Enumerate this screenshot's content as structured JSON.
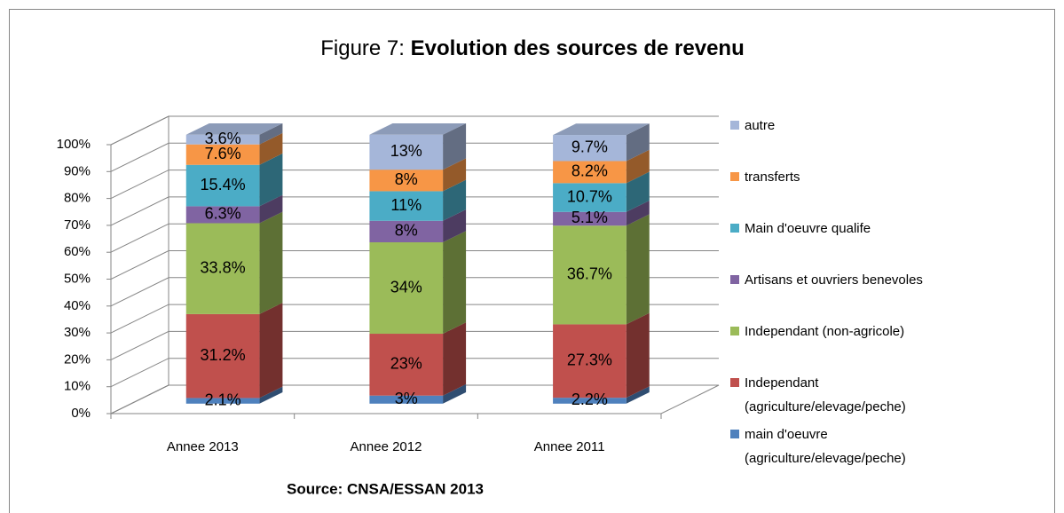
{
  "chart_data": {
    "type": "bar3d_stacked",
    "title": {
      "prefix": "Figure 7:",
      "main": "Evolution des sources de revenu"
    },
    "source": "Source: CNSA/ESSAN 2013",
    "categories": [
      "Annee 2013",
      "Annee 2012",
      "Annee 2011"
    ],
    "series": [
      {
        "name": "main d'oeuvre (agriculture/elevage/peche)",
        "color": "#4f81bd",
        "values": [
          2.1,
          3,
          2.2
        ],
        "value_labels": [
          "2.1%",
          "3%",
          "2.2%"
        ]
      },
      {
        "name": "Independant (agriculture/elevage/peche)",
        "color": "#c0504d",
        "values": [
          31.2,
          23,
          27.3
        ],
        "value_labels": [
          "31.2%",
          "23%",
          "27.3%"
        ]
      },
      {
        "name": "Independant (non-agricole)",
        "color": "#9bbb59",
        "values": [
          33.8,
          34,
          36.7
        ],
        "value_labels": [
          "33.8%",
          "34%",
          "36.7%"
        ]
      },
      {
        "name": "Artisans et ouvriers benevoles",
        "color": "#8064a2",
        "values": [
          6.3,
          8,
          5.1
        ],
        "value_labels": [
          "6.3%",
          "8%",
          "5.1%"
        ]
      },
      {
        "name": "Main d'oeuvre qualife",
        "color": "#4bacc6",
        "values": [
          15.4,
          11,
          10.7
        ],
        "value_labels": [
          "15.4%",
          "11%",
          "10.7%"
        ]
      },
      {
        "name": "transferts",
        "color": "#f79646",
        "values": [
          7.6,
          8,
          8.2
        ],
        "value_labels": [
          "7.6%",
          "8%",
          "8.2%"
        ]
      },
      {
        "name": "autre",
        "color": "#a5b6d9",
        "values": [
          3.6,
          13,
          9.7
        ],
        "value_labels": [
          "3.6%",
          "13%",
          "9.7%"
        ]
      }
    ],
    "ylim": [
      0,
      100
    ],
    "yticks": [
      {
        "value": 0,
        "label": "0%"
      },
      {
        "value": 10,
        "label": "10%"
      },
      {
        "value": 20,
        "label": "20%"
      },
      {
        "value": 30,
        "label": "30%"
      },
      {
        "value": 40,
        "label": "40%"
      },
      {
        "value": 50,
        "label": "50%"
      },
      {
        "value": 60,
        "label": "60%"
      },
      {
        "value": 70,
        "label": "70%"
      },
      {
        "value": 80,
        "label": "80%"
      },
      {
        "value": 90,
        "label": "90%"
      },
      {
        "value": 100,
        "label": "100%"
      }
    ],
    "grid": true,
    "legend": "right"
  }
}
